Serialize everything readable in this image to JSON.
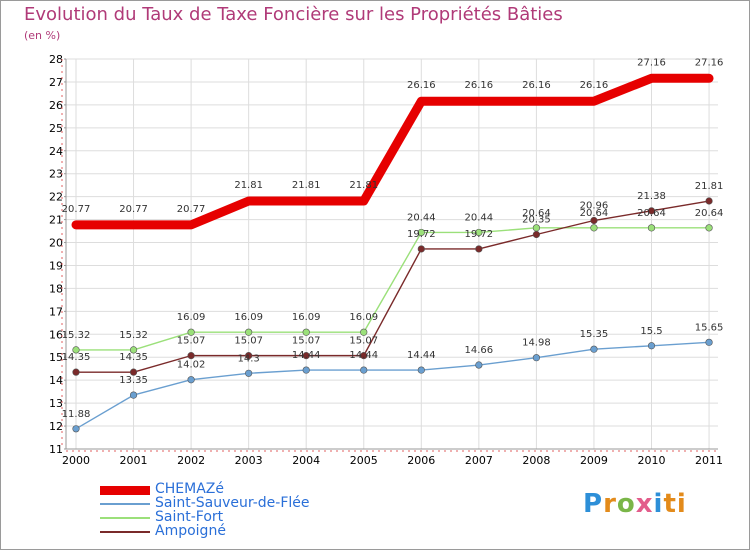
{
  "title": "Evolution du Taux de Taxe Foncière sur les Propriétés Bâties",
  "subtitle": "(en %)",
  "logo": [
    "P",
    "r",
    "o",
    "x",
    "i",
    "ti"
  ],
  "chart_data": {
    "type": "line",
    "title": "Evolution du Taux de Taxe Foncière sur les Propriétés Bâties",
    "ylabel": "(en %)",
    "xlabel": "",
    "ylim": [
      11,
      28
    ],
    "yticks": [
      11,
      12,
      13,
      14,
      15,
      16,
      17,
      18,
      19,
      20,
      21,
      22,
      23,
      24,
      25,
      26,
      27,
      28
    ],
    "x": [
      "2000",
      "2001",
      "2002",
      "2003",
      "2004",
      "2005",
      "2006",
      "2007",
      "2008",
      "2009",
      "2010",
      "2011"
    ],
    "grid": true,
    "series": [
      {
        "name": "CHEMAZé",
        "color": "#e60000",
        "values": [
          20.77,
          20.77,
          20.77,
          21.81,
          21.81,
          21.81,
          26.16,
          26.16,
          26.16,
          26.16,
          27.16,
          27.16
        ],
        "labels": [
          "20.77",
          "20.77",
          "20.77",
          "21.81",
          "21.81",
          "21.81",
          "26.16",
          "26.16",
          "26.16",
          "26.16",
          "27.16",
          "27.16"
        ]
      },
      {
        "name": "Saint-Sauveur-de-Flée",
        "color": "#6a9fd0",
        "values": [
          11.88,
          13.35,
          14.02,
          14.3,
          14.44,
          14.44,
          14.44,
          14.66,
          14.98,
          15.35,
          15.5,
          15.65
        ],
        "labels": [
          "11.88",
          "13.35",
          "14.02",
          "14.3",
          "14.44",
          "14.44",
          "14.44",
          "14.66",
          "14.98",
          "15.35",
          "15.5",
          "15.65"
        ]
      },
      {
        "name": "Saint-Fort",
        "color": "#9be07a",
        "values": [
          15.32,
          15.32,
          16.09,
          16.09,
          16.09,
          16.09,
          20.44,
          20.44,
          20.64,
          20.64,
          20.64,
          20.64
        ],
        "labels": [
          "15.32",
          "15.32",
          "16.09",
          "16.09",
          "16.09",
          "16.09",
          "20.44",
          "20.44",
          "20.64",
          "20.64",
          "20.64",
          "20.64"
        ]
      },
      {
        "name": "Ampoigné",
        "color": "#7a2a2a",
        "values": [
          14.35,
          14.35,
          15.07,
          15.07,
          15.07,
          15.07,
          19.72,
          19.72,
          20.35,
          20.96,
          21.38,
          21.81
        ],
        "labels": [
          "14.35",
          "14.35",
          "15.07",
          "15.07",
          "15.07",
          "15.07",
          "19.72",
          "19.72",
          "20.35",
          "20.96",
          "21.38",
          "21.81"
        ]
      }
    ]
  }
}
